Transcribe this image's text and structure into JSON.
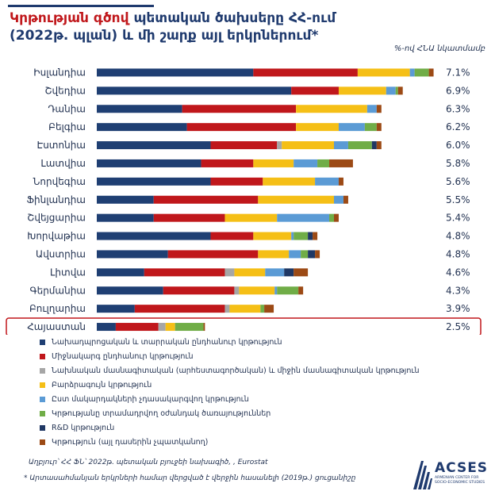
{
  "title": {
    "accent": "Կրթության գծով",
    "rest": " պետական ծախսերը ՀՀ-ում (2022թ. պլան) և մի շարք այլ երկրներում*"
  },
  "units_note": "%-ով ՀՆԱ նկատմամբ",
  "source": "Աղբյուր՝ ՀՀ ՖՆ՝ 2022թ. պետական բյուջեի նախագիծ, , Eurostat",
  "note": "* Արտասահմանյան երկրների համար վերցված է վերջին հասանելի (2019թ.) ցուցանիշը",
  "logo": {
    "name": "ACSES",
    "tagline": "ARMENIAN CENTER FOR SOCIO-ECONOMIC STUDIES"
  },
  "chart_data": {
    "type": "bar",
    "orientation": "horizontal",
    "stacked": true,
    "unit": "% of GDP",
    "categories": [
      "Իսլանդիա",
      "Շվեդիա",
      "Դանիա",
      "Բելգիա",
      "Էստոնիա",
      "Լատվիա",
      "Նորվեգիա",
      "Ֆինլանդիա",
      "Շվեյցարիա",
      "Խորվաթիա",
      "Ավստրիա",
      "Լիտվա",
      "Գերմանիա",
      "Բուլղարիա",
      "Հայաստան"
    ],
    "totals": [
      7.1,
      6.9,
      6.3,
      6.2,
      6.0,
      5.8,
      5.6,
      5.5,
      5.4,
      4.8,
      4.8,
      4.6,
      4.3,
      3.9,
      2.5
    ],
    "total_labels": [
      "7.1%",
      "6.9%",
      "6.3%",
      "6.2%",
      "6.0%",
      "5.8%",
      "5.6%",
      "5.5%",
      "5.4%",
      "4.8%",
      "4.8%",
      "4.6%",
      "4.3%",
      "3.9%",
      "2.5%"
    ],
    "highlighted_category": "Հայաստան",
    "series": [
      {
        "name": "Նախադպրոցական և տարրական ընդհանուր կրթություն",
        "color": "#1f3f73",
        "values": [
          3.3,
          4.1,
          1.8,
          1.9,
          2.4,
          2.2,
          2.4,
          1.2,
          1.2,
          2.4,
          1.5,
          1.0,
          1.4,
          0.8,
          0.4
        ]
      },
      {
        "name": "Միջնակարգ ընդհանուր կրթություն",
        "color": "#c0171b",
        "values": [
          2.2,
          1.0,
          2.4,
          2.3,
          1.4,
          1.1,
          1.1,
          2.2,
          1.5,
          0.9,
          1.9,
          1.7,
          1.5,
          1.9,
          0.9
        ]
      },
      {
        "name": "Նախնական մասնագիտական (արհեստագործական) և միջին մասնագիտական կրթություն",
        "color": "#a6a6a6",
        "values": [
          0,
          0,
          0,
          0,
          0.1,
          0,
          0,
          0,
          0,
          0,
          0,
          0.2,
          0.1,
          0.1,
          0.15
        ]
      },
      {
        "name": "Բարձրագույն կրթություն",
        "color": "#f5bf16",
        "values": [
          1.1,
          1.0,
          1.5,
          0.9,
          1.1,
          0.85,
          1.1,
          1.6,
          1.1,
          0.8,
          0.65,
          0.65,
          0.75,
          0.65,
          0.2
        ]
      },
      {
        "name": "Ըստ մակարդակների չդասակարգվող կրթություն",
        "color": "#5b9bd5",
        "values": [
          0.1,
          0.2,
          0.2,
          0.55,
          0.3,
          0.5,
          0.5,
          0.2,
          1.1,
          0.05,
          0.25,
          0.4,
          0.05,
          0,
          0
        ]
      },
      {
        "name": "Կրթությանը տրամադրվող օժանդակ ծառայություններ",
        "color": "#70ad47",
        "values": [
          0.3,
          0.05,
          0,
          0.25,
          0.5,
          0.25,
          0,
          0,
          0.1,
          0.3,
          0.15,
          0,
          0.45,
          0.08,
          0.6
        ]
      },
      {
        "name": "R&D կրթություն",
        "color": "#203864",
        "values": [
          0,
          0,
          0,
          0,
          0.1,
          0,
          0,
          0,
          0,
          0.1,
          0.15,
          0.2,
          0,
          0,
          0
        ]
      },
      {
        "name": "Կրթություն (այլ դասերին չպատկանող)",
        "color": "#9c4a15",
        "values": [
          0.1,
          0.1,
          0.1,
          0.1,
          0.1,
          0.5,
          0.1,
          0.1,
          0.1,
          0.1,
          0.1,
          0.3,
          0.1,
          0.2,
          0.03
        ]
      }
    ]
  }
}
